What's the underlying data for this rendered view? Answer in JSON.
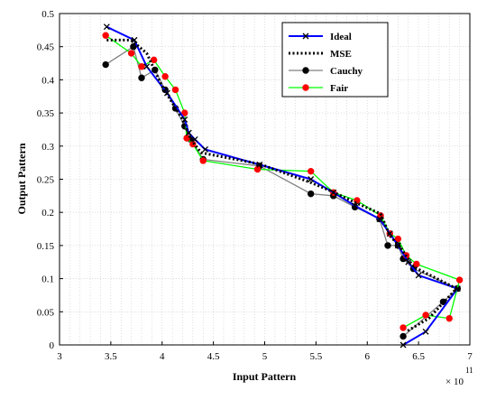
{
  "chart_data": {
    "type": "line",
    "xlabel": "Input Pattern",
    "ylabel": "Output Pattern",
    "x_multiplier_label": "× 10",
    "x_multiplier_exponent": "11",
    "xlim": [
      3,
      7
    ],
    "ylim": [
      0,
      0.5
    ],
    "x_ticks": [
      "3",
      "3.5",
      "4",
      "4.5",
      "5",
      "5.5",
      "6",
      "6.5",
      "7"
    ],
    "x_tick_values": [
      3,
      3.5,
      4,
      4.5,
      5,
      5.5,
      6,
      6.5,
      7
    ],
    "y_ticks": [
      "0",
      "0.05",
      "0.1",
      "0.15",
      "0.2",
      "0.25",
      "0.3",
      "0.35",
      "0.4",
      "0.45",
      "0.5"
    ],
    "y_tick_values": [
      0,
      0.05,
      0.1,
      0.15,
      0.2,
      0.25,
      0.3,
      0.35,
      0.4,
      0.45,
      0.5
    ],
    "grid": true,
    "legend_position": "top-right",
    "series": [
      {
        "name": "Ideal",
        "color": "#0000ff",
        "line_style": "solid",
        "marker": "x",
        "x": [
          3.46,
          3.73,
          3.85,
          4.05,
          4.22,
          4.26,
          4.32,
          4.42,
          4.95,
          5.45,
          5.67,
          5.88,
          6.12,
          6.22,
          6.3,
          6.4,
          6.5,
          6.88,
          6.57,
          6.35
        ],
        "y": [
          0.48,
          0.46,
          0.42,
          0.38,
          0.34,
          0.32,
          0.31,
          0.295,
          0.272,
          0.25,
          0.23,
          0.21,
          0.19,
          0.168,
          0.15,
          0.125,
          0.105,
          0.085,
          0.02,
          0.0
        ]
      },
      {
        "name": "MSE",
        "color": "#000000",
        "line_style": "dotted",
        "marker": "none",
        "x": [
          3.46,
          3.7,
          3.85,
          4.0,
          4.2,
          4.28,
          4.38,
          4.95,
          5.45,
          5.65,
          5.88,
          6.13,
          6.22,
          6.32,
          6.45,
          6.87,
          6.6,
          6.38
        ],
        "y": [
          0.46,
          0.46,
          0.44,
          0.39,
          0.34,
          0.31,
          0.29,
          0.273,
          0.245,
          0.232,
          0.215,
          0.198,
          0.165,
          0.148,
          0.118,
          0.085,
          0.04,
          0.02
        ]
      },
      {
        "name": "Cauchy",
        "color": "#808080",
        "line_style": "solid",
        "marker": "circle",
        "marker_color": "#000000",
        "x": [
          3.45,
          3.72,
          3.8,
          3.93,
          4.03,
          4.13,
          4.22,
          4.28,
          4.4,
          4.95,
          5.45,
          5.67,
          5.88,
          6.12,
          6.2,
          6.3,
          6.35,
          6.45,
          6.88,
          6.74,
          6.35
        ],
        "y": [
          0.423,
          0.45,
          0.403,
          0.415,
          0.385,
          0.357,
          0.33,
          0.31,
          0.28,
          0.27,
          0.228,
          0.225,
          0.208,
          0.19,
          0.15,
          0.15,
          0.13,
          0.115,
          0.085,
          0.065,
          0.013
        ]
      },
      {
        "name": "Fair",
        "color": "#00ff00",
        "line_style": "solid",
        "marker": "circle",
        "marker_color": "#ff0000",
        "x": [
          3.45,
          3.7,
          3.8,
          3.92,
          4.03,
          4.13,
          4.22,
          4.24,
          4.3,
          4.4,
          4.93,
          5.45,
          5.67,
          5.9,
          6.13,
          6.22,
          6.3,
          6.38,
          6.48,
          6.9,
          6.8,
          6.57,
          6.35
        ],
        "y": [
          0.467,
          0.44,
          0.42,
          0.43,
          0.405,
          0.385,
          0.35,
          0.312,
          0.303,
          0.278,
          0.265,
          0.262,
          0.23,
          0.218,
          0.195,
          0.168,
          0.16,
          0.135,
          0.122,
          0.098,
          0.04,
          0.045,
          0.026
        ]
      }
    ]
  }
}
